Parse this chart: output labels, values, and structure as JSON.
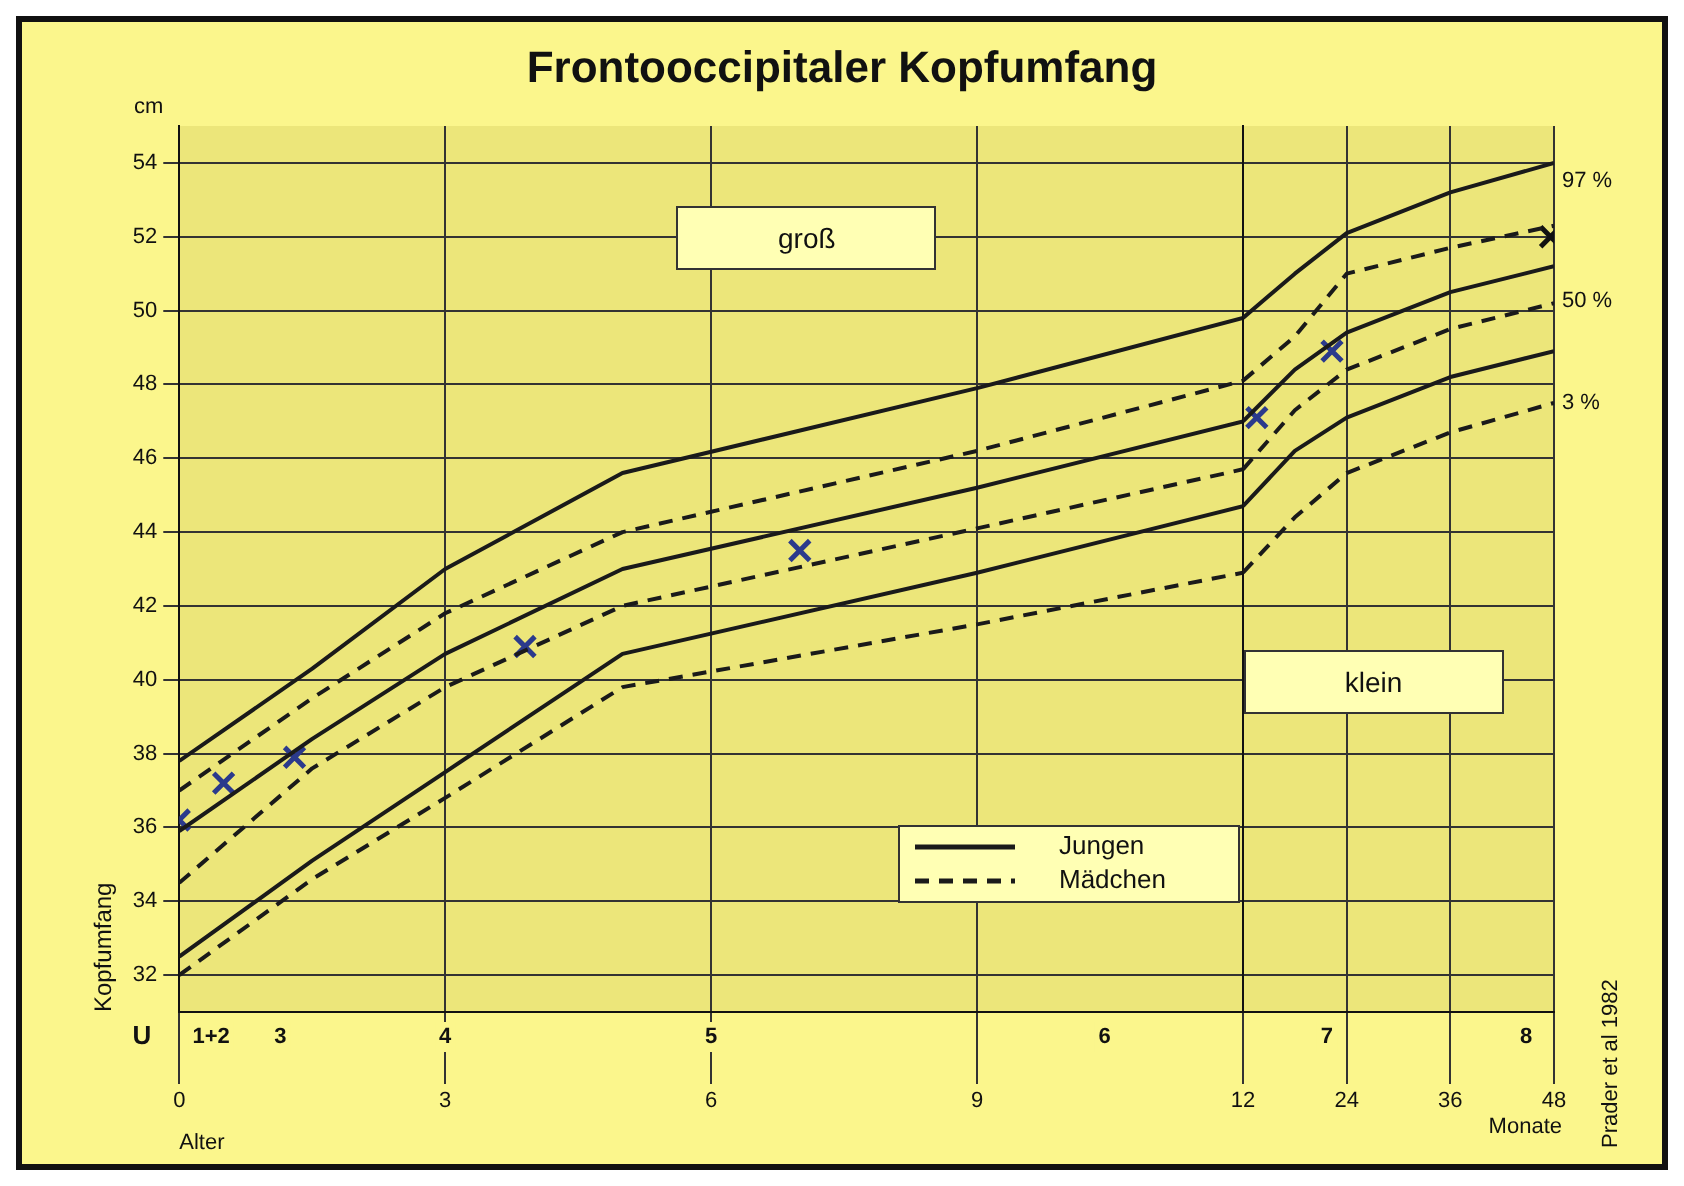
{
  "chart_data": [
    {
      "type": "line",
      "title": "Frontooccipitaler Kopfumfang",
      "xlabel": "Alter",
      "ylabel": "Kopfumfang",
      "x": [
        0,
        1.5,
        3,
        5,
        9,
        12
      ],
      "series": [
        {
          "name": "Jungen",
          "color": "#1a1a1a",
          "line_style": "solid",
          "values": [
            37.8,
            40.3,
            43.0,
            45.6,
            47.9,
            49.8
          ]
        },
        {
          "name": "Mädchen",
          "color": "#1a1a1a",
          "line_style": "dashed",
          "values": [
            37.0,
            39.5,
            41.8,
            44.0,
            46.2,
            48.1
          ]
        },
        {
          "color": "#1a1a1a",
          "line_style": "solid",
          "values": [
            35.9,
            38.4,
            40.7,
            43.0,
            45.2,
            47.0
          ]
        },
        {
          "color": "#1a1a1a",
          "line_style": "dashed",
          "values": [
            34.5,
            37.6,
            39.8,
            42.0,
            44.1,
            45.7
          ]
        },
        {
          "color": "#1a1a1a",
          "line_style": "solid",
          "values": [
            32.5,
            35.1,
            37.5,
            40.7,
            42.9,
            44.7
          ]
        },
        {
          "color": "#1a1a1a",
          "line_style": "dashed",
          "values": [
            32.0,
            34.6,
            36.8,
            39.8,
            41.5,
            42.9
          ]
        },
        {
          "type": "scatter",
          "marker": "cross",
          "x": [
            0,
            0.5,
            1.3,
            3.9,
            7
          ],
          "values": [
            36.2,
            37.2,
            37.9,
            40.9,
            43.5
          ],
          "color": "#2b3a8c"
        }
      ],
      "xlim": [
        0,
        12
      ],
      "xticks": [
        0,
        3,
        6,
        9,
        12
      ],
      "ylim": [
        31,
        55
      ],
      "yticks": [
        32,
        34,
        36,
        38,
        40,
        42,
        44,
        46,
        48,
        50,
        52,
        54
      ],
      "grid": true,
      "legend": "bottom right",
      "marker": "none",
      "annotations": [
        "cm",
        "groß",
        "U",
        "1+2",
        "3",
        "4",
        "5",
        "6"
      ]
    },
    {
      "type": "line",
      "tick_labels": "x",
      "x": [
        12,
        18,
        24,
        36,
        48
      ],
      "series": [
        {
          "color": "#1a1a1a",
          "line_style": "solid",
          "values": [
            49.8,
            51.0,
            52.1,
            53.2,
            54.0
          ]
        },
        {
          "color": "#1a1a1a",
          "line_style": "dashed",
          "values": [
            48.1,
            49.3,
            51.0,
            51.7,
            52.3
          ]
        },
        {
          "color": "#1a1a1a",
          "line_style": "solid",
          "values": [
            47.0,
            48.4,
            49.4,
            50.5,
            51.2
          ]
        },
        {
          "color": "#1a1a1a",
          "line_style": "dashed",
          "values": [
            45.7,
            47.3,
            48.4,
            49.5,
            50.2
          ]
        },
        {
          "color": "#1a1a1a",
          "line_style": "solid",
          "values": [
            44.7,
            46.2,
            47.1,
            48.2,
            48.9
          ]
        },
        {
          "color": "#1a1a1a",
          "line_style": "dashed",
          "values": [
            42.9,
            44.4,
            45.6,
            46.7,
            47.5
          ]
        },
        {
          "type": "scatter",
          "marker": "cross",
          "x": [
            13.6,
            22.3,
            47.6
          ],
          "values": [
            47.1,
            48.9,
            52.0
          ],
          "colors": [
            "#2b3a8c",
            "#2b3a8c",
            "#111111"
          ]
        }
      ],
      "xlim": [
        12,
        48
      ],
      "xticks": [
        24,
        36,
        48
      ],
      "ylim": [
        31,
        55
      ],
      "yticks": [
        32,
        34,
        36,
        38,
        40,
        42,
        44,
        46,
        48,
        50,
        52,
        54
      ],
      "grid": true,
      "marker": "none",
      "annotations": [
        "klein",
        "97 %",
        "50 %",
        "3 %",
        "Monate",
        "Prader et al 1982",
        "7",
        "8"
      ]
    }
  ]
}
